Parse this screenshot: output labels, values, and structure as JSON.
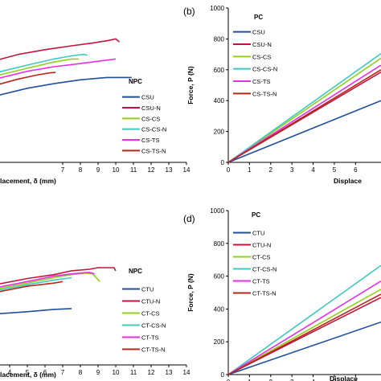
{
  "chart_data": [
    {
      "panel": "a",
      "type": "line",
      "panel_label": "",
      "xlabel": "lacement, δ (mm)",
      "ylabel": "",
      "xlim": [
        3,
        14
      ],
      "ylim": [
        0,
        1000
      ],
      "x_ticks": [
        "7",
        "8",
        "9",
        "10",
        "11",
        "12",
        "13",
        "14"
      ],
      "y_ticks": [],
      "legend_title": "NPC",
      "series": [
        {
          "name": "CSU",
          "color": "#1f4e9c",
          "points": [
            [
              3.2,
              430
            ],
            [
              5.0,
              480
            ],
            [
              6.5,
              510
            ],
            [
              8.0,
              535
            ],
            [
              9.5,
              550
            ],
            [
              10.9,
              550
            ]
          ]
        },
        {
          "name": "CSU-N",
          "color": "#c0143c",
          "points": [
            [
              3.2,
              660
            ],
            [
              4.5,
              700
            ],
            [
              6.0,
              730
            ],
            [
              7.5,
              755
            ],
            [
              8.8,
              775
            ],
            [
              9.6,
              790
            ],
            [
              10.0,
              800
            ],
            [
              10.2,
              780
            ]
          ]
        },
        {
          "name": "CS-CS",
          "color": "#8fd11a",
          "points": [
            [
              3.2,
              560
            ],
            [
              5.0,
              610
            ],
            [
              6.5,
              650
            ],
            [
              7.5,
              670
            ],
            [
              7.9,
              670
            ]
          ]
        },
        {
          "name": "CS-CS-N",
          "color": "#3ec8c0",
          "points": [
            [
              3.2,
              580
            ],
            [
              5.0,
              630
            ],
            [
              6.5,
              670
            ],
            [
              7.5,
              690
            ],
            [
              8.2,
              700
            ],
            [
              8.4,
              695
            ]
          ]
        },
        {
          "name": "CS-TS",
          "color": "#e62ee6",
          "points": [
            [
              3.2,
              540
            ],
            [
              5.0,
              590
            ],
            [
              6.5,
              620
            ],
            [
              8.0,
              640
            ],
            [
              9.0,
              655
            ],
            [
              10.0,
              670
            ]
          ]
        },
        {
          "name": "CS-TS-N",
          "color": "#b4281a",
          "points": [
            [
              3.2,
              500
            ],
            [
              4.5,
              540
            ],
            [
              5.5,
              565
            ],
            [
              6.3,
              580
            ],
            [
              6.6,
              583
            ]
          ]
        }
      ]
    },
    {
      "panel": "b",
      "type": "line",
      "panel_label": "(b)",
      "xlabel": "Displace",
      "ylabel": "Force, P (N)",
      "xlim": [
        0,
        7.2
      ],
      "ylim": [
        0,
        1000
      ],
      "x_ticks": [
        "0",
        "1",
        "2",
        "3",
        "4",
        "5",
        "6"
      ],
      "y_ticks": [
        "0",
        "200",
        "400",
        "600",
        "800",
        "1000"
      ],
      "legend_title": "PC",
      "series": [
        {
          "name": "CSU",
          "color": "#1f4e9c",
          "points": [
            [
              0,
              0
            ],
            [
              7.2,
              400
            ]
          ]
        },
        {
          "name": "CSU-N",
          "color": "#c0143c",
          "points": [
            [
              0,
              0
            ],
            [
              7.2,
              585
            ]
          ]
        },
        {
          "name": "CS-CS",
          "color": "#8fd11a",
          "points": [
            [
              0,
              0
            ],
            [
              7.2,
              675
            ]
          ]
        },
        {
          "name": "CS-CS-N",
          "color": "#3ec8c0",
          "points": [
            [
              0,
              0
            ],
            [
              7.2,
              705
            ]
          ]
        },
        {
          "name": "CS-TS",
          "color": "#e62ee6",
          "points": [
            [
              0,
              0
            ],
            [
              7.2,
              630
            ]
          ]
        },
        {
          "name": "CS-TS-N",
          "color": "#b4281a",
          "points": [
            [
              0,
              0
            ],
            [
              7.2,
              600
            ]
          ]
        }
      ]
    },
    {
      "panel": "c",
      "type": "line",
      "panel_label": "",
      "xlabel": "lacement, δ (mm)",
      "ylabel": "",
      "xlim": [
        3,
        14
      ],
      "ylim": [
        0,
        1000
      ],
      "x_ticks": [
        "4",
        "5",
        "6",
        "7",
        "8",
        "9",
        "10",
        "11",
        "12",
        "13",
        "14"
      ],
      "y_ticks": [],
      "legend_title": "NPC",
      "series": [
        {
          "name": "CTU",
          "color": "#1f4e9c",
          "points": [
            [
              3.2,
              330
            ],
            [
              5.0,
              345
            ],
            [
              6.5,
              360
            ],
            [
              7.5,
              365
            ]
          ]
        },
        {
          "name": "CTU-N",
          "color": "#c0143c",
          "points": [
            [
              3.2,
              520
            ],
            [
              5.0,
              560
            ],
            [
              6.5,
              585
            ],
            [
              7.5,
              610
            ],
            [
              8.5,
              620
            ],
            [
              9.0,
              630
            ],
            [
              9.5,
              630
            ],
            [
              9.9,
              630
            ],
            [
              10.0,
              610
            ]
          ]
        },
        {
          "name": "CT-CS",
          "color": "#8fd11a",
          "points": [
            [
              3.2,
              490
            ],
            [
              5.0,
              530
            ],
            [
              6.5,
              565
            ],
            [
              7.5,
              585
            ],
            [
              8.3,
              595
            ],
            [
              8.7,
              590
            ],
            [
              9.1,
              540
            ]
          ]
        },
        {
          "name": "CT-CS-N",
          "color": "#3ec8c0",
          "points": [
            [
              3.2,
              480
            ],
            [
              5.0,
              520
            ],
            [
              6.5,
              550
            ],
            [
              7.5,
              565
            ]
          ]
        },
        {
          "name": "CT-TS",
          "color": "#e62ee6",
          "points": [
            [
              3.2,
              500
            ],
            [
              5.0,
              540
            ],
            [
              6.5,
              575
            ],
            [
              7.5,
              590
            ],
            [
              8.5,
              600
            ],
            [
              8.8,
              590
            ]
          ]
        },
        {
          "name": "CT-TS-N",
          "color": "#b4281a",
          "points": [
            [
              3.2,
              470
            ],
            [
              5.0,
              510
            ],
            [
              6.5,
              530
            ],
            [
              7.0,
              540
            ]
          ]
        }
      ]
    },
    {
      "panel": "d",
      "type": "line",
      "panel_label": "(d)",
      "xlabel": "Displace",
      "ylabel": "Force, P (N)",
      "xlim": [
        0,
        7.2
      ],
      "ylim": [
        0,
        1000
      ],
      "x_ticks": [
        "0",
        "1",
        "2",
        "3",
        "4",
        "5",
        "6"
      ],
      "y_ticks": [
        "0",
        "200",
        "400",
        "600",
        "800",
        "1000"
      ],
      "legend_title": "PC",
      "series": [
        {
          "name": "CTU",
          "color": "#1f4e9c",
          "points": [
            [
              0,
              0
            ],
            [
              7.2,
              320
            ]
          ]
        },
        {
          "name": "CTU-N",
          "color": "#c0143c",
          "points": [
            [
              0,
              0
            ],
            [
              7.2,
              470
            ]
          ]
        },
        {
          "name": "CT-CS",
          "color": "#8fd11a",
          "points": [
            [
              0,
              0
            ],
            [
              7.2,
              520
            ]
          ]
        },
        {
          "name": "CT-CS-N",
          "color": "#3ec8c0",
          "points": [
            [
              0,
              0
            ],
            [
              7.2,
              665
            ]
          ]
        },
        {
          "name": "CT-TS",
          "color": "#e62ee6",
          "points": [
            [
              0,
              0
            ],
            [
              7.2,
              570
            ]
          ]
        },
        {
          "name": "CT-TS-N",
          "color": "#b4281a",
          "points": [
            [
              0,
              0
            ],
            [
              7.2,
              490
            ]
          ]
        }
      ]
    }
  ]
}
